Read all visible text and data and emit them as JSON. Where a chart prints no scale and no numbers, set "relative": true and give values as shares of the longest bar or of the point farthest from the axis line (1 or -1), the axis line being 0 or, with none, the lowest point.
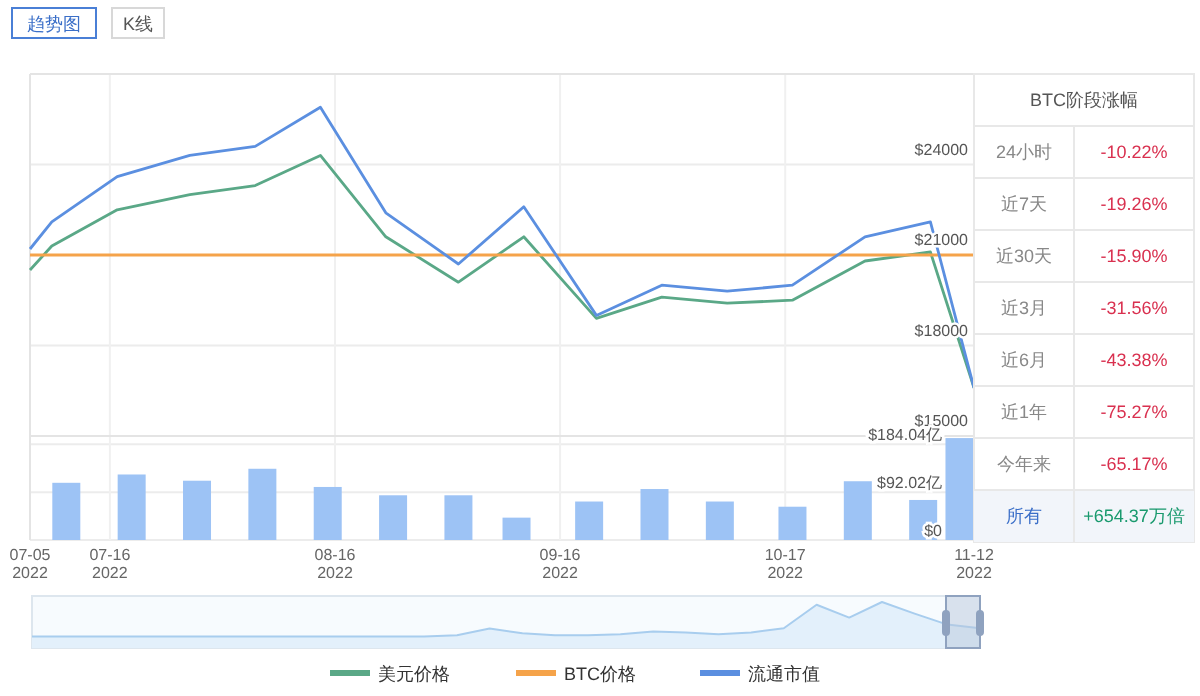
{
  "chart_data": [
    {
      "type": "line",
      "annotations": [
        "趋势图",
        "K线"
      ],
      "xlim": [
        "2022-07-05",
        "2022-11-12"
      ],
      "xticks": [
        "2022-07-05",
        "2022-07-16",
        "2022-08-16",
        "2022-09-16",
        "2022-10-17",
        "2022-11-12"
      ],
      "ylim": [
        15000,
        27000
      ],
      "yticks": [
        {
          "value": 15000,
          "label": "$15000"
        },
        {
          "value": 18000,
          "label": "$18000"
        },
        {
          "value": 21000,
          "label": "$21000"
        },
        {
          "value": 24000,
          "label": "$24000"
        }
      ],
      "tick_labels": "y",
      "grid": true,
      "legend": "bottom",
      "series": [
        {
          "name": "美元价格",
          "color": "#5aa887",
          "x": [
            "2022-07-05",
            "2022-07-08",
            "2022-07-17",
            "2022-07-27",
            "2022-08-05",
            "2022-08-14",
            "2022-08-23",
            "2022-09-02",
            "2022-09-11",
            "2022-09-21",
            "2022-09-30",
            "2022-10-09",
            "2022-10-18",
            "2022-10-28",
            "2022-11-06",
            "2022-11-12"
          ],
          "values": [
            20500,
            21300,
            22500,
            23000,
            23300,
            24300,
            21600,
            20100,
            21600,
            18900,
            19600,
            19400,
            19500,
            20800,
            21100,
            16600
          ]
        },
        {
          "name": "BTC价格",
          "color": "#f5a34a",
          "x": [
            "2022-07-05",
            "2022-11-12"
          ],
          "values": [
            21000,
            21000
          ]
        },
        {
          "name": "流通市值",
          "color": "#5b8fe0",
          "x": [
            "2022-07-05",
            "2022-07-08",
            "2022-07-17",
            "2022-07-27",
            "2022-08-05",
            "2022-08-14",
            "2022-08-23",
            "2022-09-02",
            "2022-09-11",
            "2022-09-21",
            "2022-09-30",
            "2022-10-09",
            "2022-10-18",
            "2022-10-28",
            "2022-11-06",
            "2022-11-12"
          ],
          "values": [
            21200,
            22100,
            23600,
            24300,
            24600,
            25900,
            22400,
            20700,
            22600,
            19000,
            20000,
            19800,
            20000,
            21600,
            22100,
            16600
          ]
        }
      ]
    },
    {
      "type": "bar",
      "x": [
        "2022-07-10",
        "2022-07-19",
        "2022-07-28",
        "2022-08-06",
        "2022-08-15",
        "2022-08-24",
        "2022-09-02",
        "2022-09-10",
        "2022-09-20",
        "2022-09-29",
        "2022-10-08",
        "2022-10-18",
        "2022-10-27",
        "2022-11-05",
        "2022-11-10"
      ],
      "values": [
        110,
        126,
        114,
        137,
        102,
        86,
        86,
        43,
        74,
        98,
        74,
        64,
        113,
        77,
        196
      ],
      "color": "#9dc3f5",
      "xlim": [
        "2022-07-05",
        "2022-11-12"
      ],
      "xticks": [
        {
          "value": "2022-07-05",
          "label": "07-05 2022"
        },
        {
          "value": "2022-07-16",
          "label": "07-16 2022"
        },
        {
          "value": "2022-08-16",
          "label": "08-16 2022"
        },
        {
          "value": "2022-09-16",
          "label": "09-16 2022"
        },
        {
          "value": "2022-10-17",
          "label": "10-17 2022"
        },
        {
          "value": "2022-11-12",
          "label": "11-12 2022"
        }
      ],
      "ylim": [
        0,
        200
      ],
      "yticks": [
        {
          "value": 0,
          "label": "$0"
        },
        {
          "value": 92.02,
          "label": "$92.02亿"
        },
        {
          "value": 184.04,
          "label": "$184.04亿"
        }
      ],
      "grid": true
    },
    {
      "type": "other",
      "title": "BTC阶段涨幅",
      "categories": [
        "24小时",
        "近7天",
        "近30天",
        "近3月",
        "近6月",
        "近1年",
        "今年来",
        "所有"
      ],
      "value_labels": [
        "-10.22%",
        "-19.26%",
        "-15.90%",
        "-31.56%",
        "-43.38%",
        "-75.27%",
        "-65.17%",
        "+654.37万倍"
      ]
    },
    {
      "type": "area",
      "relative": true,
      "color": "#a8cdee",
      "categories": [
        null,
        null,
        null,
        null,
        null,
        null,
        null,
        null,
        null,
        null,
        null,
        null,
        null,
        null,
        null,
        null,
        null,
        null,
        null,
        null,
        null,
        null,
        null,
        null,
        null,
        null,
        null,
        null,
        null,
        null
      ],
      "values": [
        0.25,
        0.25,
        0.25,
        0.25,
        0.25,
        0.25,
        0.25,
        0.25,
        0.25,
        0.25,
        0.25,
        0.25,
        0.25,
        0.28,
        0.42,
        0.32,
        0.28,
        0.28,
        0.3,
        0.36,
        0.34,
        0.3,
        0.34,
        0.43,
        0.94,
        0.66,
        1.0,
        0.75,
        0.51,
        0.43
      ]
    }
  ]
}
